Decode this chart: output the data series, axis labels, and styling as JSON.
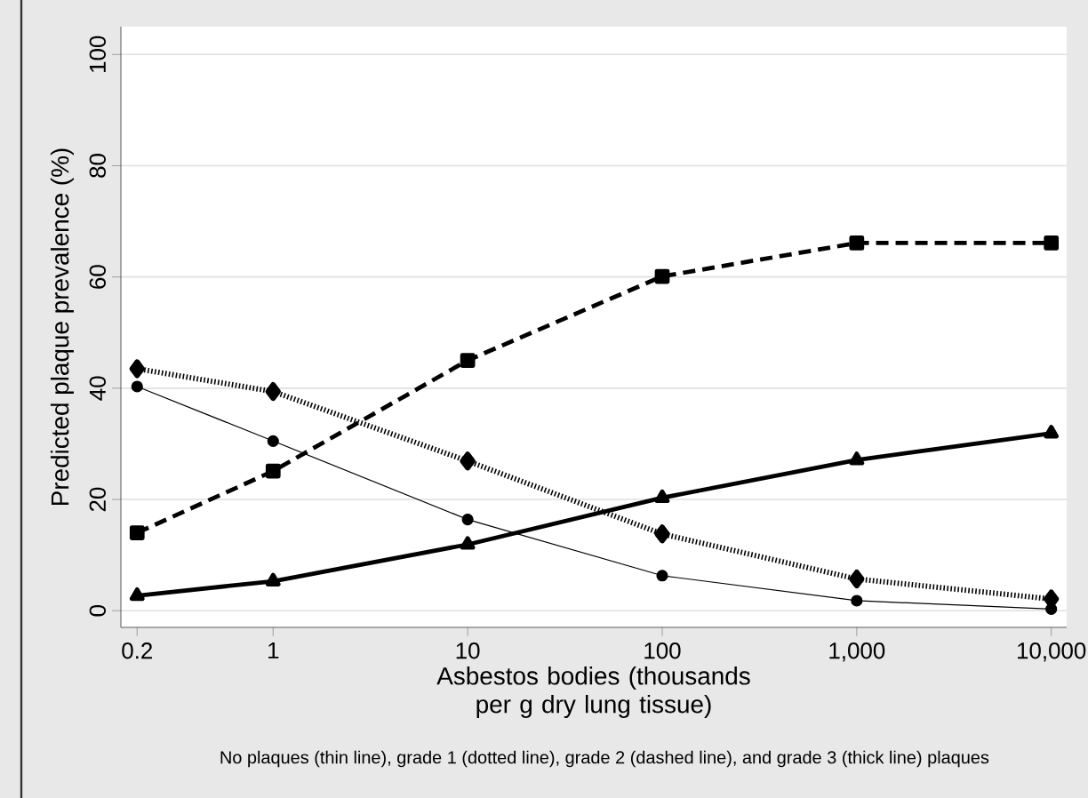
{
  "chart_data": {
    "type": "line",
    "xlabel": "Asbestos bodies (thousands per g dry lung tissue)",
    "ylabel": "Predicted plaque prevalence (%)",
    "x": [
      0.2,
      1,
      10,
      100,
      1000,
      10000
    ],
    "series": [
      {
        "color": "#000000",
        "marker": "circle",
        "line_style": "solid",
        "values": [
          40.3,
          30.5,
          16.4,
          6.3,
          1.8,
          0.3
        ]
      },
      {
        "color": "#000000",
        "marker": "diamond",
        "line_style": "dotted",
        "values": [
          43.5,
          39.4,
          26.9,
          13.8,
          5.7,
          2.1
        ]
      },
      {
        "color": "#000000",
        "marker": "square",
        "line_style": "dashed",
        "values": [
          14.0,
          25.1,
          45.0,
          60.1,
          66.1,
          66.1
        ]
      },
      {
        "color": "#000000",
        "marker": "triangle",
        "line_style": "solid",
        "values": [
          2.7,
          5.3,
          11.9,
          20.3,
          27.1,
          31.9
        ]
      }
    ],
    "log": "x",
    "xlim": [
      0.165,
      12000
    ],
    "ylim": [
      -3,
      105
    ],
    "xticks": [
      0.2,
      1,
      10,
      100,
      {
        "value": 1000,
        "label": "1,000"
      },
      {
        "value": 10000,
        "label": "10,000"
      }
    ],
    "yticks": [
      0,
      20,
      40,
      60,
      80,
      100
    ],
    "grid": "y",
    "annotations": [
      "No plaques (thin line), grade 1 (dotted line), grade 2 (dashed line), and grade 3 (thick line) plaques"
    ]
  }
}
